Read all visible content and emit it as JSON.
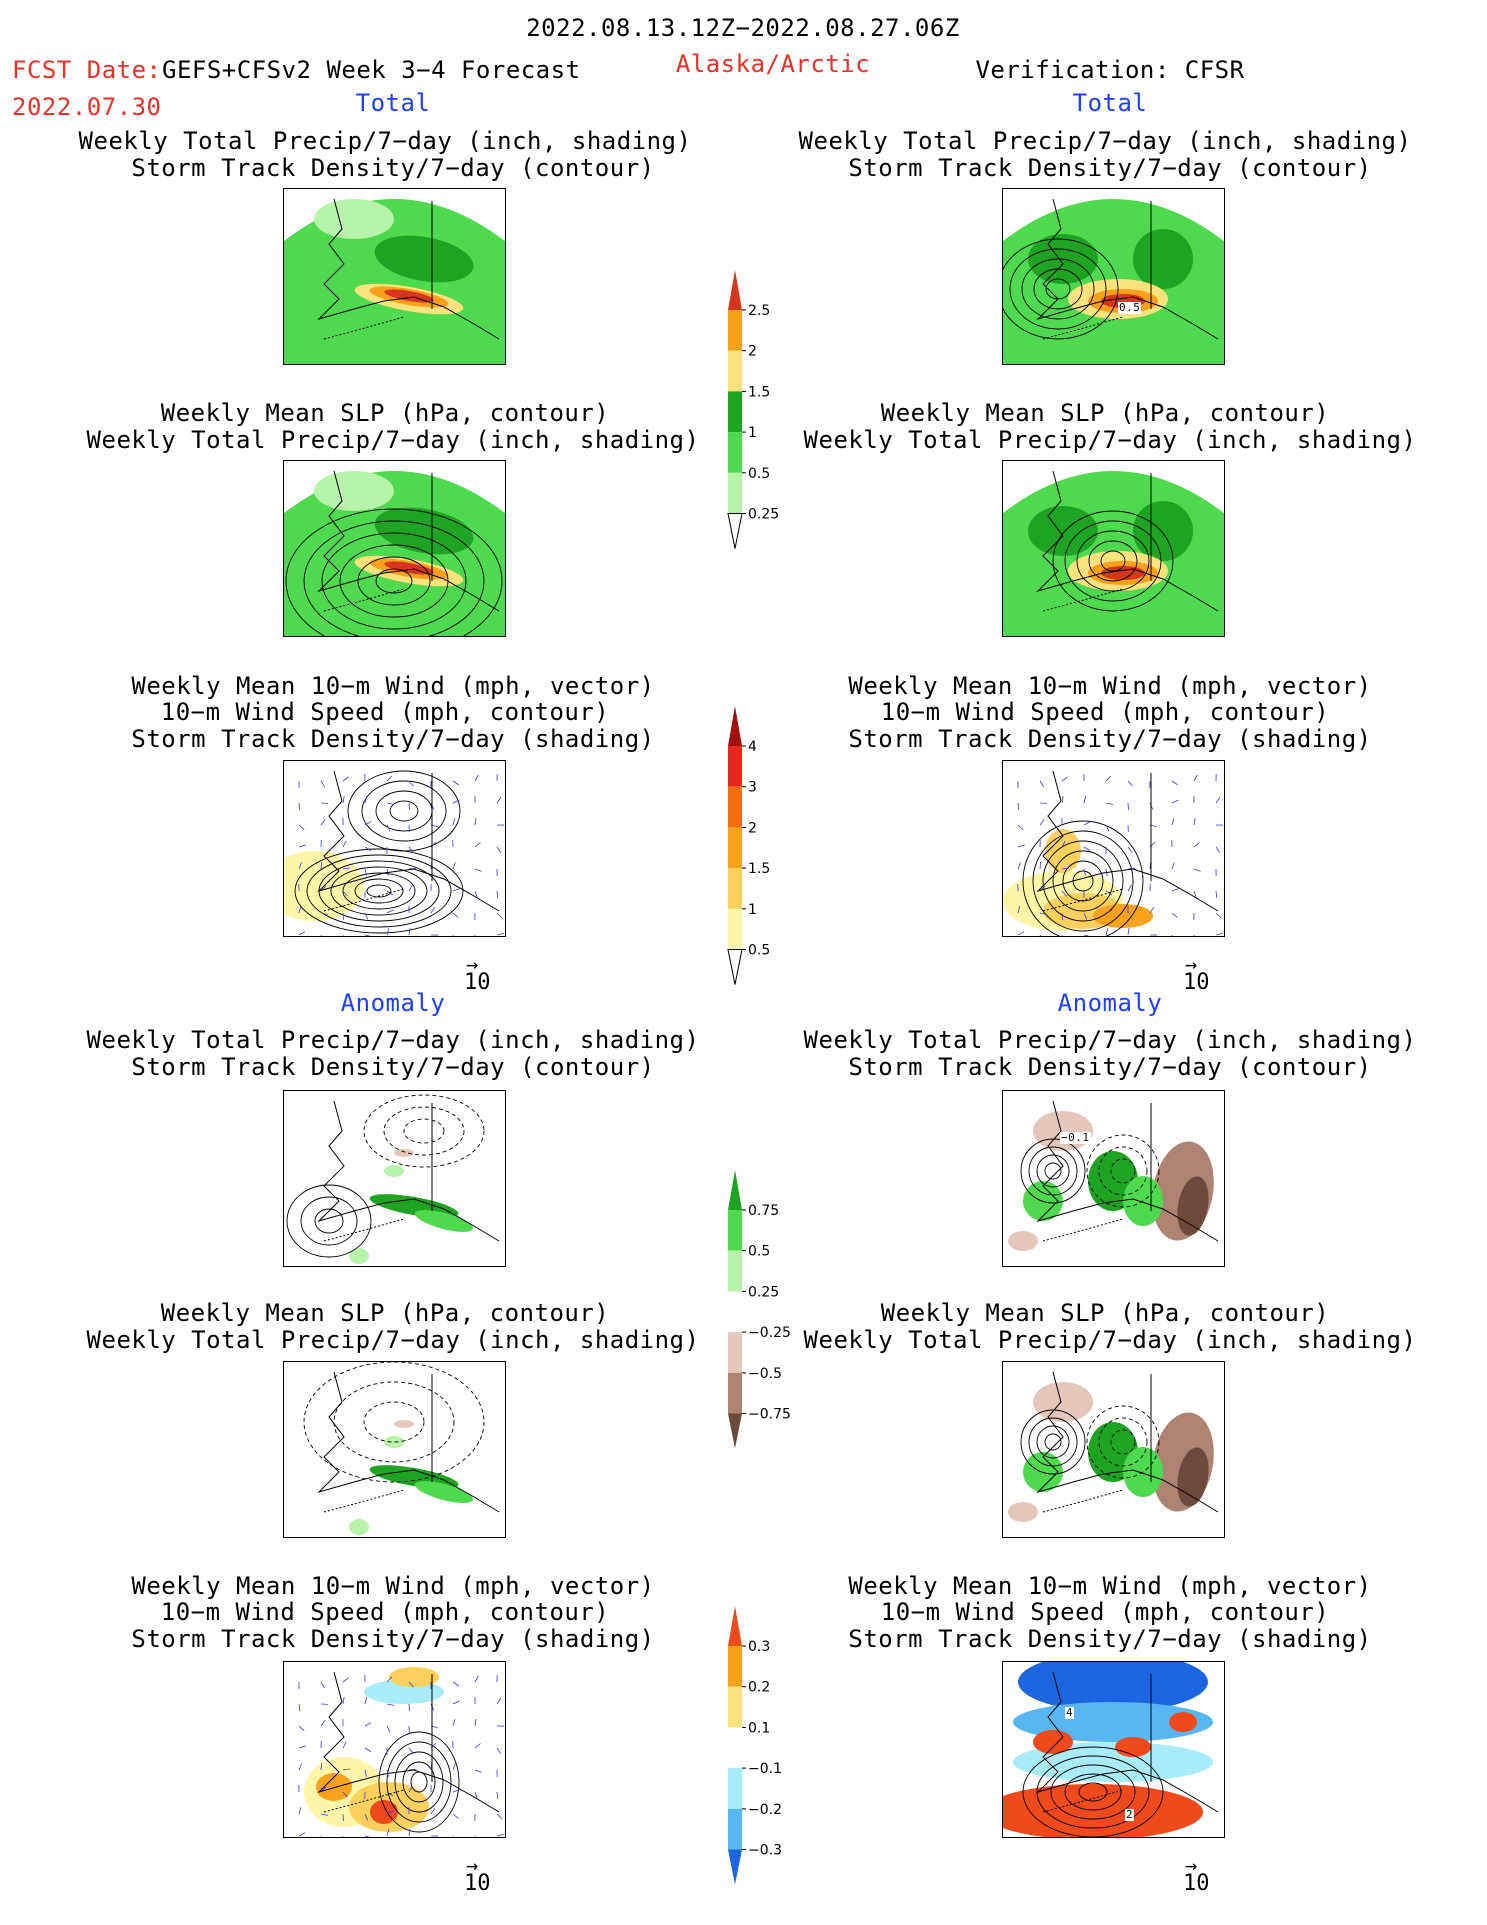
{
  "header": {
    "period": "2022.08.13.12Z−2022.08.27.06Z",
    "fcst_label": "FCST Date:",
    "model": "GEFS+CFSv2 Week 3−4 Forecast",
    "region": "Alaska/Arctic",
    "verification": "Verification: CFSR",
    "fcst_date": "2022.07.30"
  },
  "sections": {
    "total": "Total",
    "anomaly": "Anomaly"
  },
  "titles": {
    "precip_storm": [
      "Weekly Total Precip/7−day (inch, shading)",
      "Storm Track Density/7−day (contour)"
    ],
    "slp_precip": [
      "Weekly Mean SLP (hPa, contour)",
      "Weekly Total Precip/7−day (inch, shading)"
    ],
    "wind": [
      "Weekly Mean 10−m Wind (mph, vector)",
      "10−m Wind Speed (mph, contour)",
      "Storm Track Density/7−day (shading)"
    ]
  },
  "contour_labels": {
    "obs_total_storm": "0.5",
    "obs_anom_storm": "−0.1",
    "obs_anom_wind_a": "4",
    "obs_anom_wind_b": "2"
  },
  "vector_ref": "10",
  "colorbars": {
    "precip_total": {
      "ticks": [
        "2.5",
        "2",
        "1.5",
        "1",
        "0.5",
        "0.25"
      ],
      "colors": [
        "#d8351e",
        "#f7a11a",
        "#fbe27c",
        "#1fa322",
        "#4fd94f",
        "#b7f3a9"
      ]
    },
    "storm_total": {
      "ticks": [
        "4",
        "3",
        "2",
        "1.5",
        "1",
        "0.5"
      ],
      "colors": [
        "#a31010",
        "#e5281c",
        "#f46d0f",
        "#f9a21c",
        "#fbd05c",
        "#fdf6a8"
      ]
    },
    "precip_anom": {
      "ticks": [
        "0.75",
        "0.5",
        "0.25",
        "−0.25",
        "−0.5",
        "−0.75"
      ],
      "colors": [
        "#1fa322",
        "#4fd94f",
        "#b7f3a9",
        "#ffffff",
        "#e3c7bb",
        "#ad8474",
        "#6e4a3a"
      ]
    },
    "storm_anom": {
      "ticks": [
        "0.3",
        "0.2",
        "0.1",
        "−0.1",
        "−0.2",
        "−0.3"
      ],
      "colors": [
        "#ef4a1c",
        "#f7a11a",
        "#fbe27c",
        "#ffffff",
        "#a7ecf7",
        "#58b7f3",
        "#1c65e0"
      ]
    }
  }
}
